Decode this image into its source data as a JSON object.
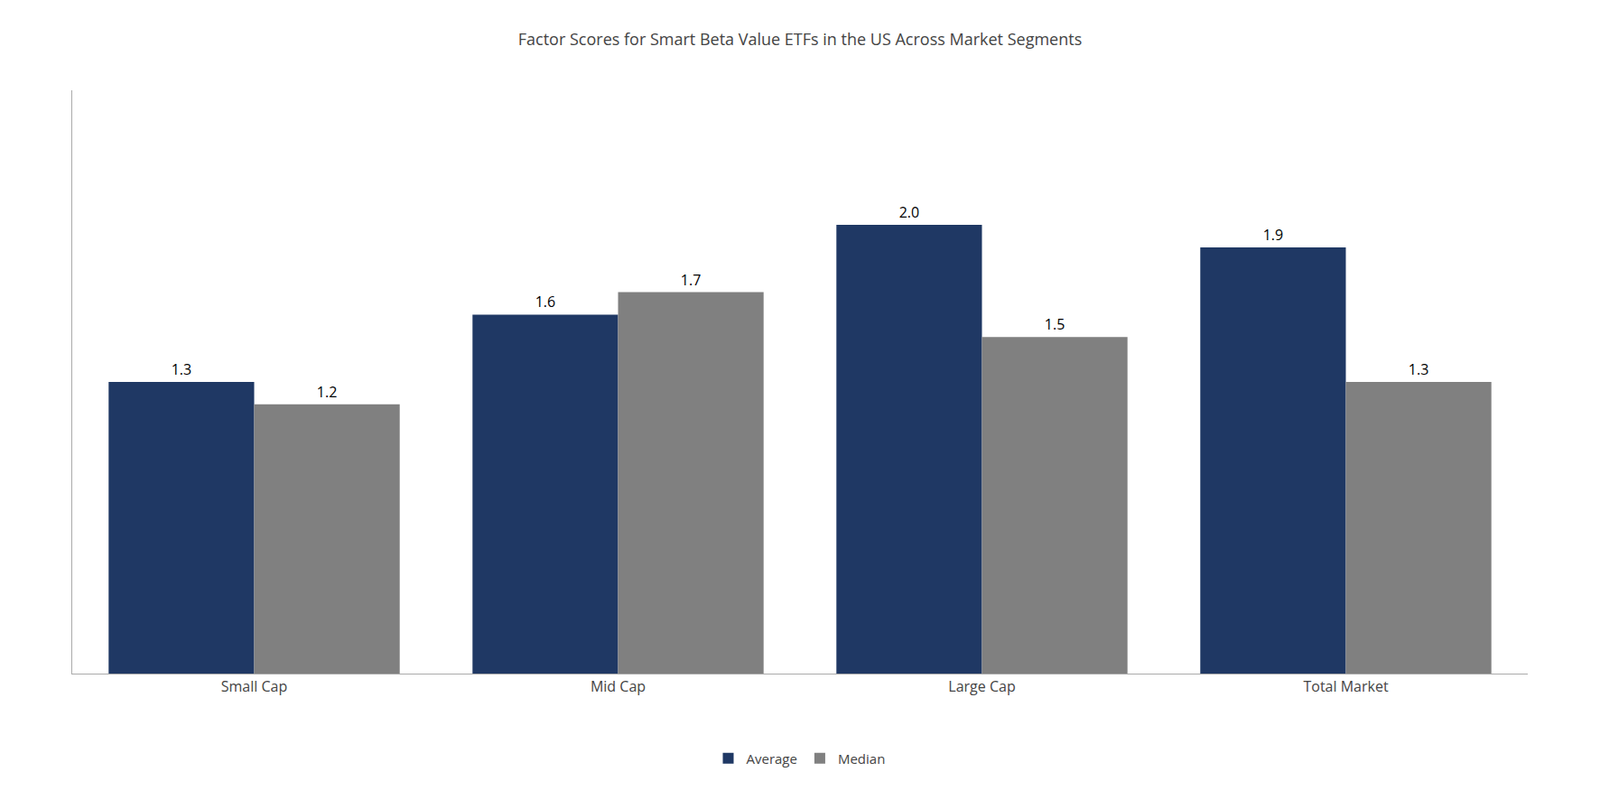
{
  "chart_data": {
    "type": "bar",
    "title": "Factor Scores for Smart Beta Value ETFs in the US Across Market Segments",
    "categories": [
      "Small Cap",
      "Mid Cap",
      "Large Cap",
      "Total Market"
    ],
    "series": [
      {
        "name": "Average",
        "color": "#1F3864",
        "values": [
          1.3,
          1.6,
          2.0,
          1.9
        ],
        "value_labels": [
          "1.3",
          "1.6",
          "2.0",
          "1.9"
        ]
      },
      {
        "name": "Median",
        "color": "#808080",
        "values": [
          1.2,
          1.7,
          1.5,
          1.3
        ],
        "value_labels": [
          "1.2",
          "1.7",
          "1.5",
          "1.3"
        ]
      }
    ],
    "ylim": [
      0,
      2.6
    ],
    "yticks": [],
    "tick_labels": "x",
    "data_labels": true,
    "grid": false,
    "legend": "bottom"
  }
}
